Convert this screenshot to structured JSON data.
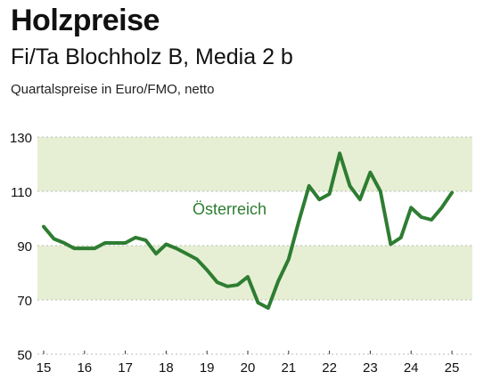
{
  "header": {
    "title": "Holzpreise",
    "subtitle": "Fi/Ta Blochholz B, Media 2 b",
    "note": "Quartalspreise in Euro/FMO, netto"
  },
  "colors": {
    "line": "#2e7d32",
    "band": "#e6efd3",
    "grid": "#bbbbbb"
  },
  "chart_data": {
    "type": "line",
    "title": "Holzpreise",
    "subtitle": "Fi/Ta Blochholz B, Media 2 b",
    "xlabel": "",
    "ylabel": "Quartalspreise in Euro/FMO, netto",
    "ylim": [
      50,
      130
    ],
    "xlim": [
      2015,
      2025
    ],
    "y_ticks": [
      "50",
      "70",
      "90",
      "110",
      "130"
    ],
    "x_ticks": [
      "15",
      "16",
      "17",
      "18",
      "19",
      "20",
      "21",
      "22",
      "23",
      "24",
      "25"
    ],
    "bands": [
      [
        110,
        130
      ],
      [
        70,
        90
      ]
    ],
    "legend": "inline label",
    "series": [
      {
        "name": "Österreich",
        "x": [
          2015.0,
          2015.25,
          2015.5,
          2015.75,
          2016.0,
          2016.25,
          2016.5,
          2016.75,
          2017.0,
          2017.25,
          2017.5,
          2017.75,
          2018.0,
          2018.25,
          2018.5,
          2018.75,
          2019.0,
          2019.25,
          2019.5,
          2019.75,
          2020.0,
          2020.25,
          2020.5,
          2020.75,
          2021.0,
          2021.25,
          2021.5,
          2021.75,
          2022.0,
          2022.25,
          2022.5,
          2022.75,
          2023.0,
          2023.25,
          2023.5,
          2023.75,
          2024.0,
          2024.25,
          2024.5,
          2024.75,
          2025.0
        ],
        "values": [
          97,
          92.5,
          91,
          89,
          89,
          89,
          91,
          91,
          91,
          93,
          92,
          87,
          90.5,
          89,
          87,
          85,
          81,
          76.5,
          75,
          75.5,
          78.5,
          69,
          67,
          77,
          85,
          99,
          112,
          107,
          109,
          124,
          112,
          107,
          117,
          110,
          90.5,
          93,
          104,
          100.5,
          99.5,
          104,
          109.5
        ]
      }
    ]
  }
}
